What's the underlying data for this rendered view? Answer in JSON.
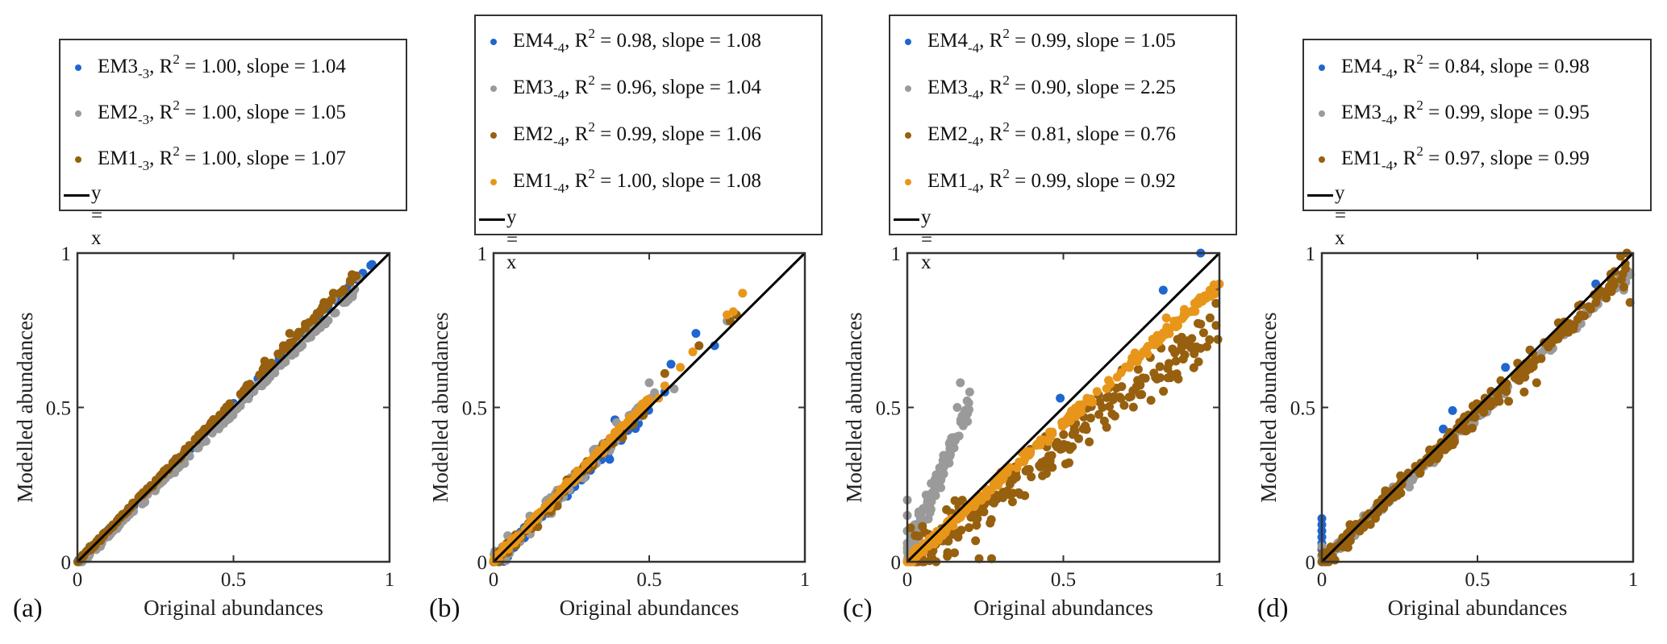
{
  "figure": {
    "x_axis_label": "Original abundances",
    "y_axis_label": "Modelled abundances",
    "reference_line_label": "y = x",
    "colors": {
      "EM1_brown": "#96600f",
      "EM2_gray": "#9a9a9a",
      "EM3_blue": "#1f66d0",
      "orange": "#e8961a",
      "line": "#000000"
    }
  },
  "chart_data": [
    {
      "type": "scatter",
      "panel_label": "(a)",
      "xlabel": "Original abundances",
      "ylabel": "Modelled abundances",
      "xlim": [
        0,
        1
      ],
      "ylim": [
        0,
        1
      ],
      "xticks": [
        "0",
        "0.5",
        "1"
      ],
      "yticks": [
        "0",
        "0.5",
        "1"
      ],
      "grid": false,
      "legend_placement": "above",
      "reference_line": {
        "label": "y = x",
        "slope": 1,
        "intercept": 0
      },
      "series": [
        {
          "name": "EM3",
          "subscript": "-3",
          "r2": "1.00",
          "slope": "1.04",
          "color": "#1f66d0",
          "sample": {
            "n": 90,
            "slope": 1.02,
            "noise": 0.008,
            "xmax": 0.95,
            "seed": 11
          },
          "highlight_points": [
            [
              0.94,
              0.96
            ],
            [
              0.55,
              0.54
            ],
            [
              0.63,
              0.64
            ]
          ]
        },
        {
          "name": "EM2",
          "subscript": "-3",
          "r2": "1.00",
          "slope": "1.05",
          "color": "#9a9a9a",
          "sample": {
            "n": 160,
            "slope": 1.0,
            "noise": 0.012,
            "xmax": 0.9,
            "seed": 12,
            "offset": -0.015
          },
          "highlight_points": [
            [
              0.9,
              0.92
            ],
            [
              0.82,
              0.85
            ],
            [
              0.75,
              0.76
            ]
          ]
        },
        {
          "name": "EM1",
          "subscript": "-3",
          "r2": "1.00",
          "slope": "1.07",
          "color": "#96600f",
          "sample": {
            "n": 170,
            "slope": 1.04,
            "noise": 0.008,
            "xmax": 0.9,
            "seed": 13
          },
          "highlight_points": [
            [
              0.88,
              0.93
            ],
            [
              0.79,
              0.84
            ],
            [
              0.82,
              0.87
            ],
            [
              0.73,
              0.77
            ],
            [
              0.68,
              0.74
            ],
            [
              0.66,
              0.7
            ],
            [
              0.6,
              0.65
            ]
          ]
        }
      ]
    },
    {
      "type": "scatter",
      "panel_label": "(b)",
      "xlabel": "Original abundances",
      "ylabel": "Modelled abundances",
      "xlim": [
        0,
        1
      ],
      "ylim": [
        0,
        1
      ],
      "xticks": [
        "0",
        "0.5",
        "1"
      ],
      "yticks": [
        "0",
        "0.5",
        "1"
      ],
      "grid": false,
      "legend_placement": "above",
      "reference_line": {
        "label": "y = x",
        "slope": 1,
        "intercept": 0
      },
      "series": [
        {
          "name": "EM4",
          "subscript": "-4",
          "r2": "0.98",
          "slope": "1.08",
          "color": "#1f66d0",
          "sample": {
            "n": 70,
            "slope": 0.98,
            "noise": 0.03,
            "xmax": 0.5,
            "seed": 21
          },
          "highlight_points": [
            [
              0.65,
              0.74
            ],
            [
              0.71,
              0.7
            ],
            [
              0.57,
              0.64
            ],
            [
              0.39,
              0.46
            ],
            [
              0.55,
              0.55
            ]
          ]
        },
        {
          "name": "EM3",
          "subscript": "-4",
          "r2": "0.96",
          "slope": "1.04",
          "color": "#9a9a9a",
          "sample": {
            "n": 120,
            "slope": 1.04,
            "noise": 0.035,
            "xmax": 0.52,
            "seed": 22
          },
          "highlight_points": [
            [
              0.5,
              0.58
            ],
            [
              0.58,
              0.56
            ],
            [
              0.75,
              0.78
            ]
          ]
        },
        {
          "name": "EM2",
          "subscript": "-4",
          "r2": "0.99",
          "slope": "1.06",
          "color": "#96600f",
          "sample": {
            "n": 120,
            "slope": 1.02,
            "noise": 0.025,
            "xmax": 0.5,
            "seed": 23
          },
          "highlight_points": [
            [
              0.66,
              0.7
            ],
            [
              0.55,
              0.61
            ],
            [
              0.78,
              0.8
            ],
            [
              0.76,
              0.78
            ]
          ]
        },
        {
          "name": "EM1",
          "subscript": "-4",
          "r2": "1.00",
          "slope": "1.08",
          "color": "#e8961a",
          "sample": {
            "n": 150,
            "slope": 1.05,
            "noise": 0.012,
            "xmax": 0.5,
            "seed": 24
          },
          "highlight_points": [
            [
              0.8,
              0.87
            ],
            [
              0.77,
              0.81
            ],
            [
              0.75,
              0.8
            ],
            [
              0.64,
              0.68
            ],
            [
              0.6,
              0.63
            ],
            [
              0.55,
              0.57
            ],
            [
              0.53,
              0.53
            ]
          ]
        }
      ]
    },
    {
      "type": "scatter",
      "panel_label": "(c)",
      "xlabel": "Original abundances",
      "ylabel": "Modelled abundances",
      "xlim": [
        0,
        1
      ],
      "ylim": [
        0,
        1
      ],
      "xticks": [
        "0",
        "0.5",
        "1"
      ],
      "yticks": [
        "0",
        "0.5",
        "1"
      ],
      "grid": false,
      "legend_placement": "above",
      "reference_line": {
        "label": "y = x",
        "slope": 1,
        "intercept": 0
      },
      "series": [
        {
          "name": "EM4",
          "subscript": "-4",
          "r2": "0.99",
          "slope": "1.05",
          "color": "#1f66d0",
          "sample": {
            "n": 0,
            "slope": 1.0,
            "noise": 0.0,
            "xmax": 0.0,
            "seed": 31
          },
          "highlight_points": [
            [
              0.94,
              1.0
            ],
            [
              0.82,
              0.88
            ],
            [
              0.49,
              0.53
            ],
            [
              0.0,
              0.0
            ]
          ]
        },
        {
          "name": "EM3",
          "subscript": "-4",
          "r2": "0.90",
          "slope": "2.25",
          "color": "#9a9a9a",
          "sample": {
            "n": 170,
            "slope": 2.5,
            "noise": 0.045,
            "xmax": 0.2,
            "seed": 32,
            "offset": 0.02
          },
          "highlight_points": [
            [
              0.17,
              0.58
            ],
            [
              0.2,
              0.55
            ],
            [
              0.16,
              0.5
            ],
            [
              0.0,
              0.2
            ],
            [
              0.0,
              0.15
            ],
            [
              0.0,
              0.1
            ],
            [
              0.0,
              0.06
            ]
          ]
        },
        {
          "name": "EM2",
          "subscript": "-4",
          "r2": "0.81",
          "slope": "0.76",
          "color": "#96600f",
          "sample": {
            "n": 230,
            "slope": 0.76,
            "noise": 0.08,
            "xmax": 1.0,
            "seed": 33
          },
          "highlight_points": [
            [
              0.97,
              0.79
            ],
            [
              0.94,
              0.77
            ],
            [
              0.99,
              0.89
            ],
            [
              0.01,
              0.11
            ],
            [
              0.27,
              0.01
            ],
            [
              0.23,
              0.01
            ],
            [
              0.08,
              0.01
            ]
          ]
        },
        {
          "name": "EM1",
          "subscript": "-4",
          "r2": "0.99",
          "slope": "0.92",
          "color": "#e8961a",
          "sample": {
            "n": 220,
            "slope": 0.9,
            "noise": 0.02,
            "xmax": 1.0,
            "seed": 34
          },
          "highlight_points": [
            [
              1.0,
              0.9
            ],
            [
              0.97,
              0.88
            ],
            [
              0.83,
              0.79
            ],
            [
              0.0,
              0.0
            ]
          ]
        }
      ]
    },
    {
      "type": "scatter",
      "panel_label": "(d)",
      "xlabel": "Original abundances",
      "ylabel": "Modelled abundances",
      "xlim": [
        0,
        1
      ],
      "ylim": [
        0,
        1
      ],
      "xticks": [
        "0",
        "0.5",
        "1"
      ],
      "yticks": [
        "0",
        "0.5",
        "1"
      ],
      "grid": false,
      "legend_placement": "above",
      "reference_line": {
        "label": "y = x",
        "slope": 1,
        "intercept": 0
      },
      "series": [
        {
          "name": "EM4",
          "subscript": "-4",
          "r2": "0.84",
          "slope": "0.98",
          "color": "#1f66d0",
          "sample": {
            "n": 0,
            "slope": 1.0,
            "noise": 0.0,
            "xmax": 0.0,
            "seed": 41
          },
          "highlight_points": [
            [
              0.0,
              0.14
            ],
            [
              0.0,
              0.12
            ],
            [
              0.0,
              0.1
            ],
            [
              0.0,
              0.08
            ],
            [
              0.0,
              0.06
            ],
            [
              0.0,
              0.04
            ],
            [
              0.0,
              0.02
            ],
            [
              0.0,
              0.0
            ],
            [
              0.39,
              0.43
            ],
            [
              0.42,
              0.49
            ],
            [
              0.59,
              0.63
            ],
            [
              0.88,
              0.9
            ]
          ]
        },
        {
          "name": "EM3",
          "subscript": "-4",
          "r2": "0.99",
          "slope": "0.95",
          "color": "#9a9a9a",
          "sample": {
            "n": 200,
            "slope": 0.95,
            "noise": 0.02,
            "xmax": 1.0,
            "seed": 42
          },
          "highlight_points": [
            [
              0.99,
              0.93
            ],
            [
              0.97,
              0.88
            ],
            [
              0.0,
              0.05
            ],
            [
              0.01,
              0.03
            ]
          ]
        },
        {
          "name": "EM1",
          "subscript": "-4",
          "r2": "0.97",
          "slope": "0.99",
          "color": "#96600f",
          "sample": {
            "n": 240,
            "slope": 0.97,
            "noise": 0.035,
            "xmax": 1.0,
            "seed": 43
          },
          "highlight_points": [
            [
              0.98,
              1.0
            ],
            [
              0.96,
              0.99
            ],
            [
              0.99,
              0.84
            ],
            [
              0.97,
              0.89
            ],
            [
              0.65,
              0.55
            ],
            [
              0.69,
              0.58
            ],
            [
              0.6,
              0.52
            ]
          ]
        }
      ]
    }
  ]
}
